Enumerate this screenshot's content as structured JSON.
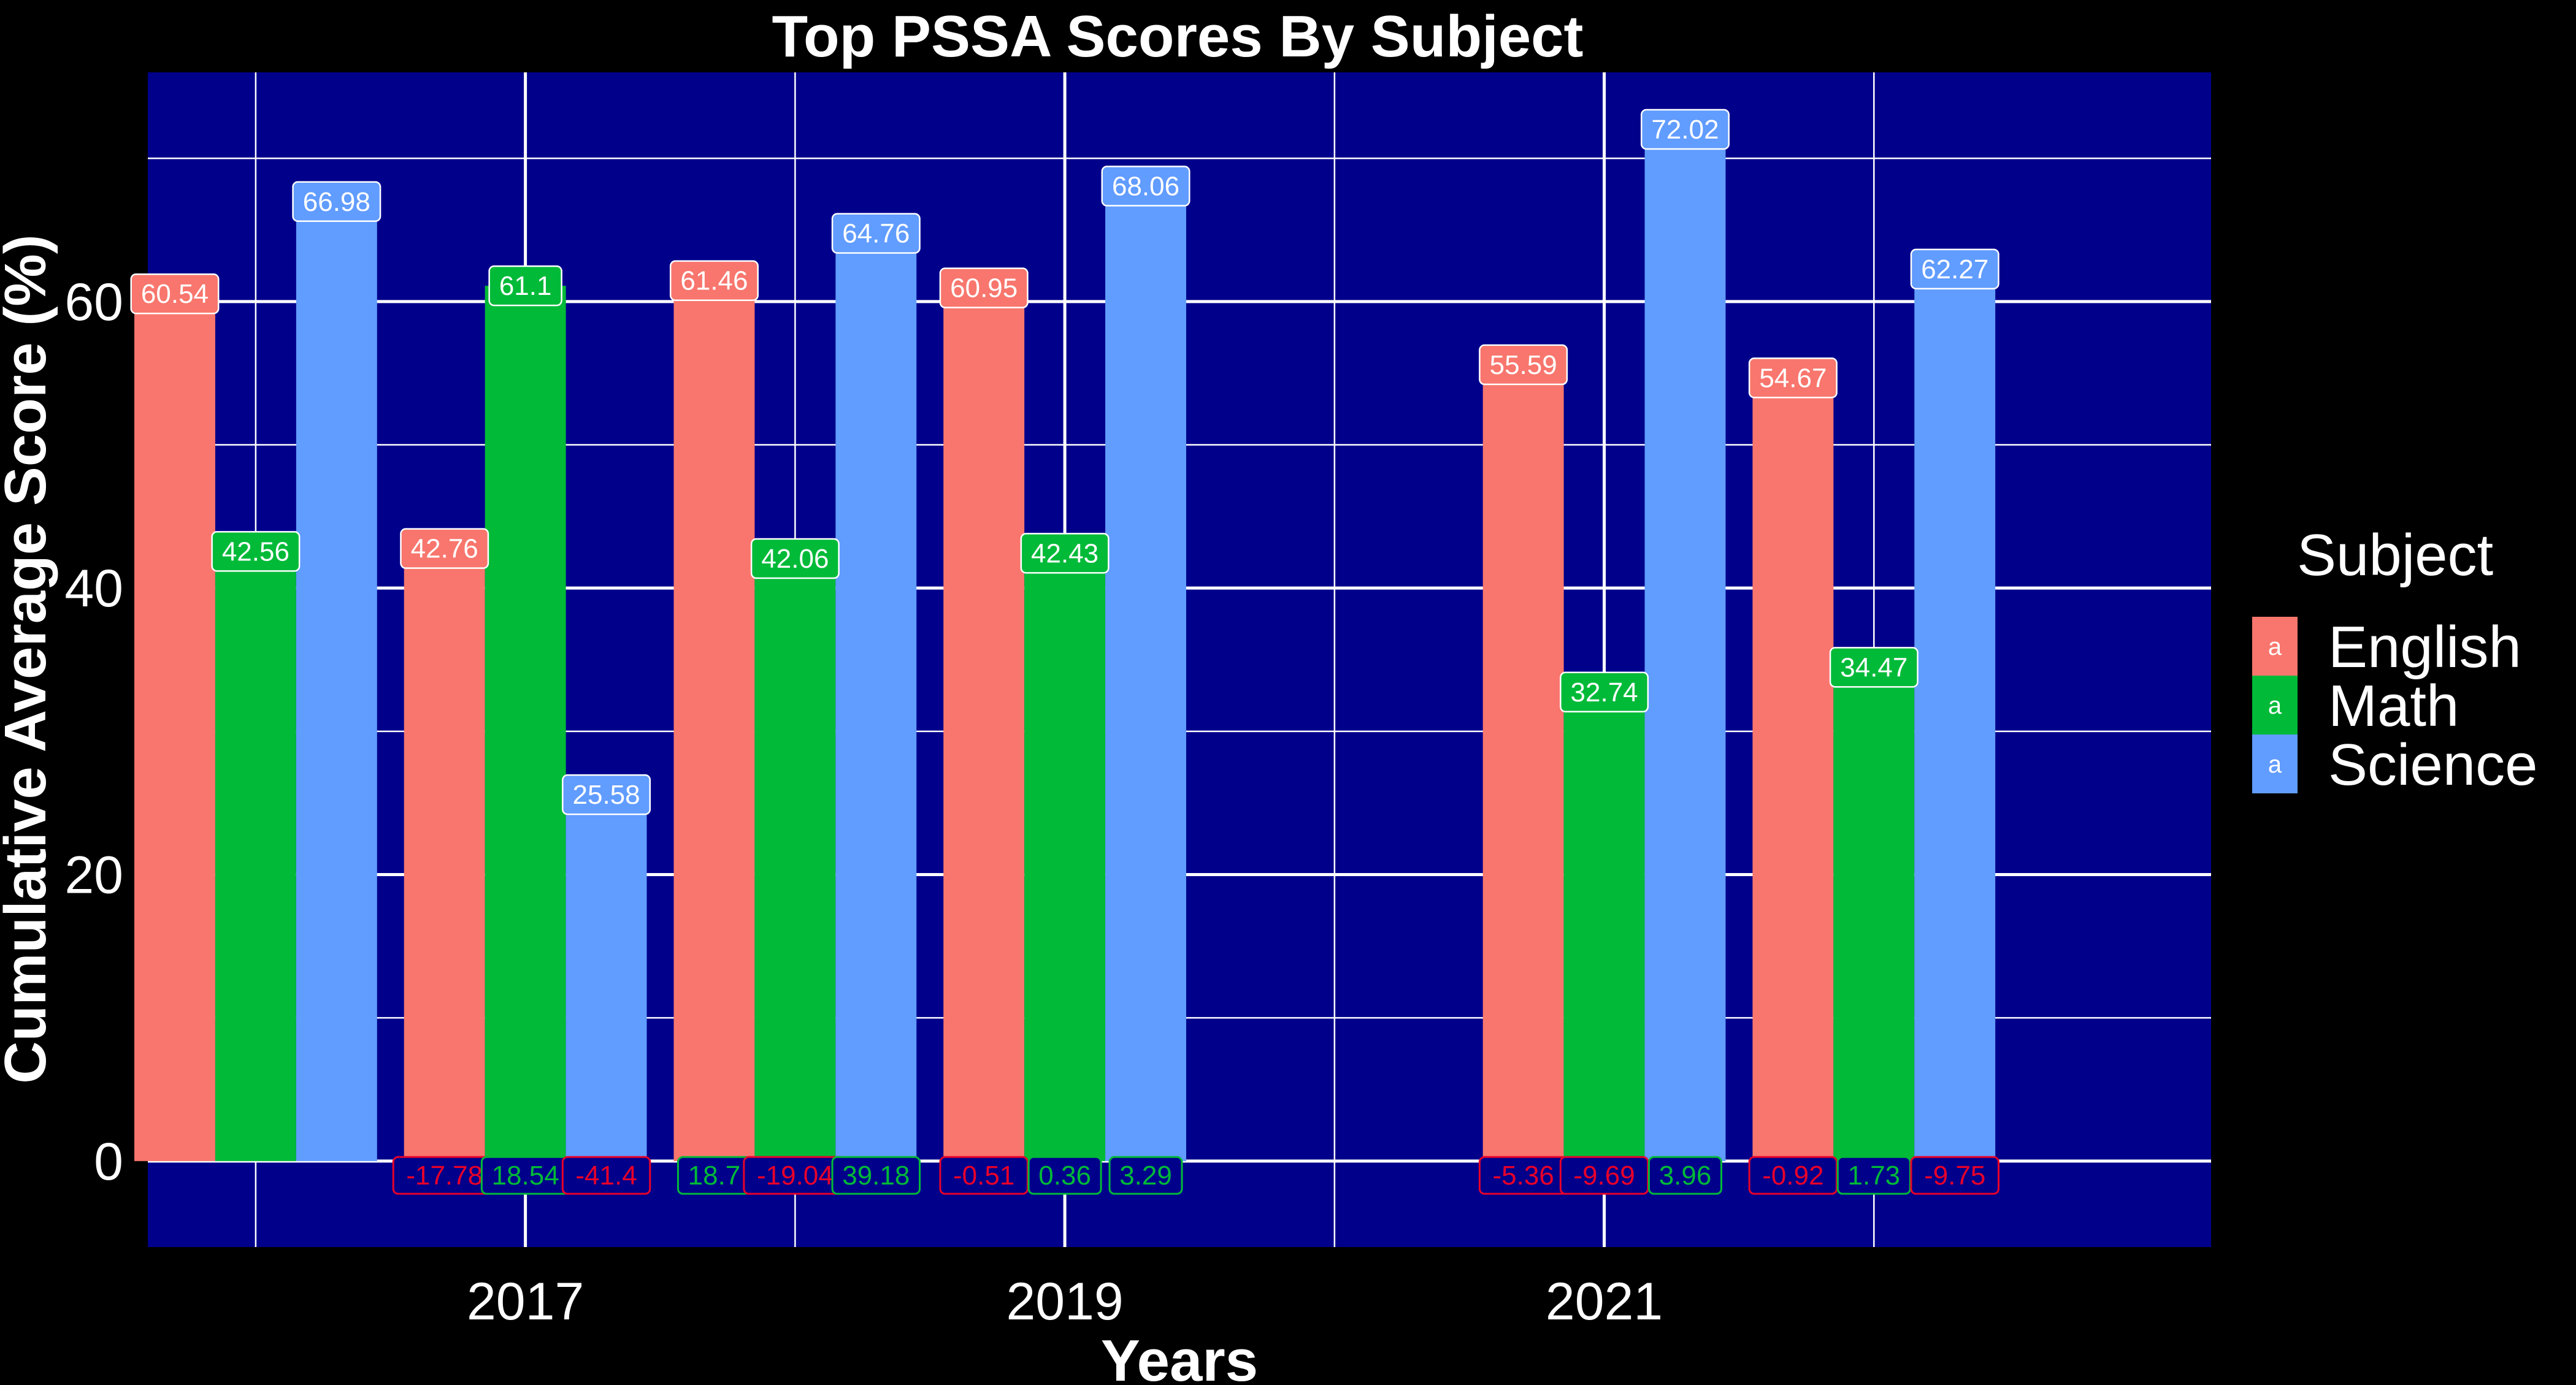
{
  "chart_data": {
    "type": "bar",
    "title": "Top PSSA Scores By Subject",
    "xlabel": "Years",
    "ylabel": "Cumulative Average Score (%)",
    "ylim": [
      -6,
      76
    ],
    "yticks": [
      0,
      20,
      40,
      60
    ],
    "xlim": [
      2015.6,
      2023.25
    ],
    "xticks": [
      2017,
      2019,
      2021
    ],
    "grid": true,
    "legend": {
      "title": "Subject",
      "position": "right",
      "key_letter": "a",
      "entries": [
        {
          "name": "English",
          "color": "#F8766D"
        },
        {
          "name": "Math",
          "color": "#00BA38"
        },
        {
          "name": "Science",
          "color": "#619CFF"
        }
      ]
    },
    "colors": {
      "background": "#000000",
      "panel": "#00008B",
      "grid": "#FFFFFF",
      "text": "#FFFFFF",
      "positive_change": "#00BA38",
      "negative_change": "#E8002A"
    },
    "x": [
      2016,
      2017,
      2018,
      2019,
      2021,
      2022
    ],
    "series": [
      {
        "name": "English",
        "color": "#F8766D",
        "values": [
          60.54,
          42.76,
          61.46,
          60.95,
          55.59,
          54.67
        ],
        "labels": [
          "60.54",
          "42.76",
          "61.46",
          "60.95",
          "55.59",
          "54.67"
        ],
        "changes": [
          "",
          "-17.78",
          "18.7",
          "-0.51",
          "-5.36",
          "-0.92"
        ]
      },
      {
        "name": "Math",
        "color": "#00BA38",
        "values": [
          42.56,
          61.1,
          42.06,
          42.43,
          32.74,
          34.47
        ],
        "labels": [
          "42.56",
          "61.1",
          "42.06",
          "42.43",
          "32.74",
          "34.47"
        ],
        "changes": [
          "",
          "18.54",
          "-19.04",
          "0.36",
          "-9.69",
          "1.73"
        ]
      },
      {
        "name": "Science",
        "color": "#619CFF",
        "values": [
          66.98,
          25.58,
          64.76,
          68.06,
          72.02,
          62.27
        ],
        "labels": [
          "66.98",
          "25.58",
          "64.76",
          "68.06",
          "72.02",
          "62.27"
        ],
        "changes": [
          "",
          "-41.4",
          "39.18",
          "3.29",
          "3.96",
          "-9.75"
        ]
      }
    ]
  }
}
